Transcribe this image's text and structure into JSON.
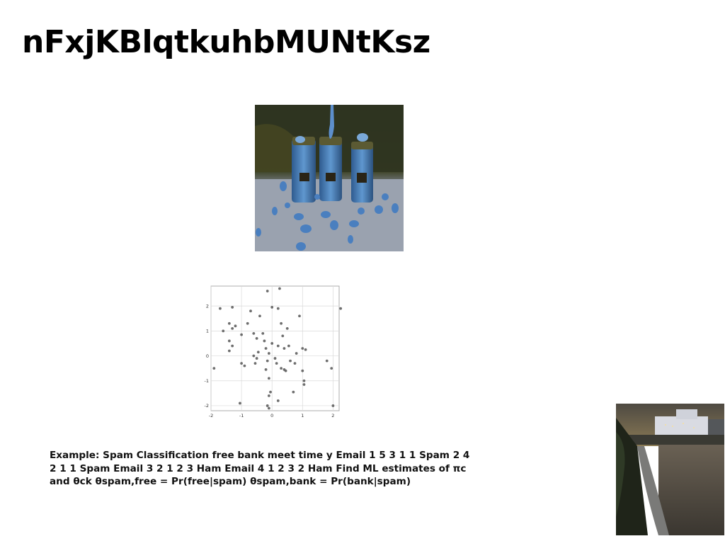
{
  "slide": {
    "title": "nFxjKBlqtkuhbMUNtKsz",
    "body_text": "Example: Spam Classification free bank meet time y Email 1 5 3 1 1 Spam 2 4 2 1 1 Spam Email 3 2 1 2 3 Ham Email 4 1 2 3 2 Ham Find ML estimates of πc and θck θspam,free = Pr(free|spam) θspam,bank = Pr(bank|spam)"
  },
  "images": {
    "jars_photo": "jars-of-blue-paint-photo",
    "city_photo": "riverside-city-evening-photo"
  },
  "chart_data": {
    "type": "scatter",
    "xlim": [
      -2,
      2.2
    ],
    "ylim": [
      -2.2,
      2.8
    ],
    "xticks": [
      "-2",
      "-1",
      "0",
      "1",
      "2"
    ],
    "yticks": [
      "-2",
      "-1",
      "0",
      "1",
      "2"
    ],
    "xtick_values": [
      -2,
      -1,
      0,
      1,
      2
    ],
    "ytick_values": [
      -2,
      -1,
      0,
      1,
      2
    ],
    "grid": true,
    "point_color": "#555555",
    "points": [
      [
        -1.9,
        -0.5
      ],
      [
        -1.7,
        1.9
      ],
      [
        -1.3,
        1.95
      ],
      [
        -1.6,
        1.0
      ],
      [
        -1.4,
        1.3
      ],
      [
        -1.3,
        1.1
      ],
      [
        -1.4,
        0.6
      ],
      [
        -1.3,
        0.4
      ],
      [
        -1.4,
        0.2
      ],
      [
        -1.2,
        1.2
      ],
      [
        -1.0,
        0.85
      ],
      [
        -0.9,
        -0.4
      ],
      [
        -1.0,
        -0.3
      ],
      [
        -0.8,
        1.3
      ],
      [
        -0.7,
        1.8
      ],
      [
        -0.6,
        0.9
      ],
      [
        -0.6,
        0.0
      ],
      [
        -0.5,
        -0.1
      ],
      [
        -0.55,
        -0.3
      ],
      [
        -0.4,
        1.6
      ],
      [
        -0.5,
        0.7
      ],
      [
        -0.3,
        0.9
      ],
      [
        -0.2,
        0.3
      ],
      [
        -0.25,
        0.6
      ],
      [
        -0.1,
        0.1
      ],
      [
        -0.15,
        -0.2
      ],
      [
        -0.2,
        -0.55
      ],
      [
        -0.1,
        -0.9
      ],
      [
        0.0,
        0.5
      ],
      [
        0.0,
        1.95
      ],
      [
        0.1,
        -0.1
      ],
      [
        0.15,
        -0.3
      ],
      [
        0.2,
        0.4
      ],
      [
        0.2,
        1.9
      ],
      [
        0.3,
        1.3
      ],
      [
        0.3,
        -0.5
      ],
      [
        0.35,
        0.8
      ],
      [
        0.4,
        0.3
      ],
      [
        0.45,
        -0.6
      ],
      [
        0.5,
        1.1
      ],
      [
        0.55,
        0.4
      ],
      [
        0.6,
        -0.2
      ],
      [
        0.75,
        -0.3
      ],
      [
        0.8,
        0.1
      ],
      [
        0.9,
        1.6
      ],
      [
        1.0,
        0.3
      ],
      [
        1.0,
        -0.6
      ],
      [
        1.05,
        -1.0
      ],
      [
        1.05,
        -1.15
      ],
      [
        1.1,
        0.25
      ],
      [
        -0.15,
        2.6
      ],
      [
        0.25,
        2.7
      ],
      [
        -0.05,
        -1.45
      ],
      [
        -0.1,
        -1.6
      ],
      [
        0.2,
        -1.8
      ],
      [
        -1.05,
        -1.9
      ],
      [
        -0.15,
        -2.0
      ],
      [
        -0.1,
        -2.1
      ],
      [
        0.7,
        -1.45
      ],
      [
        1.8,
        -0.2
      ],
      [
        1.95,
        -0.5
      ],
      [
        2.0,
        -2.0
      ],
      [
        2.25,
        1.9
      ],
      [
        0.4,
        -0.55
      ],
      [
        -0.45,
        0.15
      ]
    ]
  }
}
